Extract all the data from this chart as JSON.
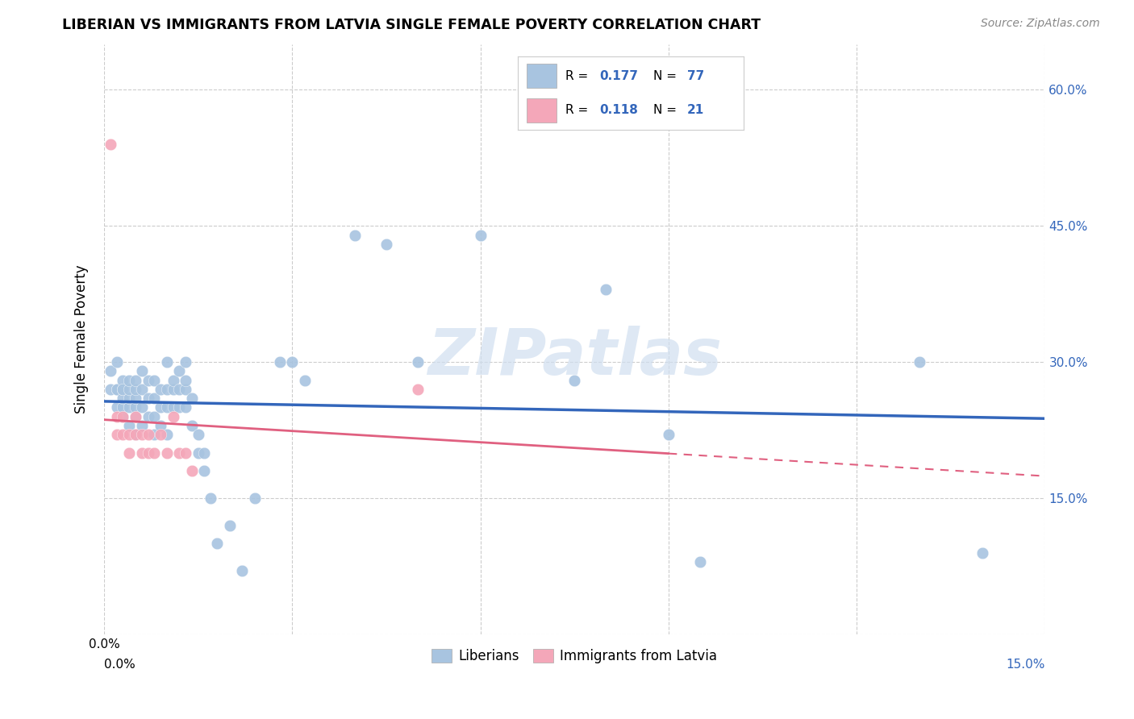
{
  "title": "LIBERIAN VS IMMIGRANTS FROM LATVIA SINGLE FEMALE POVERTY CORRELATION CHART",
  "source": "Source: ZipAtlas.com",
  "ylabel": "Single Female Poverty",
  "xlim": [
    0.0,
    0.15
  ],
  "ylim": [
    0.0,
    0.65
  ],
  "xticks": [
    0.0,
    0.03,
    0.06,
    0.09,
    0.12,
    0.15
  ],
  "yticks": [
    0.0,
    0.15,
    0.3,
    0.45,
    0.6
  ],
  "ytick_labels": [
    "",
    "15.0%",
    "30.0%",
    "45.0%",
    "60.0%"
  ],
  "watermark": "ZIPatlas",
  "blue_color": "#a8c4e0",
  "pink_color": "#f4a7b9",
  "line_blue": "#3366bb",
  "line_pink": "#e06080",
  "grid_color": "#cccccc",
  "blue_x": [
    0.001,
    0.001,
    0.002,
    0.002,
    0.002,
    0.002,
    0.003,
    0.003,
    0.003,
    0.003,
    0.003,
    0.003,
    0.004,
    0.004,
    0.004,
    0.004,
    0.004,
    0.005,
    0.005,
    0.005,
    0.005,
    0.005,
    0.005,
    0.006,
    0.006,
    0.006,
    0.006,
    0.007,
    0.007,
    0.007,
    0.008,
    0.008,
    0.008,
    0.008,
    0.009,
    0.009,
    0.009,
    0.01,
    0.01,
    0.01,
    0.01,
    0.011,
    0.011,
    0.011,
    0.012,
    0.012,
    0.012,
    0.013,
    0.013,
    0.013,
    0.013,
    0.014,
    0.014,
    0.015,
    0.015,
    0.016,
    0.016,
    0.017,
    0.018,
    0.02,
    0.022,
    0.024,
    0.028,
    0.03,
    0.032,
    0.04,
    0.045,
    0.05,
    0.06,
    0.075,
    0.08,
    0.09,
    0.095,
    0.13,
    0.14
  ],
  "blue_y": [
    0.27,
    0.29,
    0.25,
    0.27,
    0.27,
    0.3,
    0.24,
    0.25,
    0.26,
    0.27,
    0.28,
    0.27,
    0.23,
    0.25,
    0.26,
    0.27,
    0.28,
    0.22,
    0.24,
    0.25,
    0.26,
    0.27,
    0.28,
    0.23,
    0.25,
    0.27,
    0.29,
    0.24,
    0.26,
    0.28,
    0.22,
    0.24,
    0.26,
    0.28,
    0.23,
    0.25,
    0.27,
    0.22,
    0.25,
    0.27,
    0.3,
    0.25,
    0.27,
    0.28,
    0.25,
    0.27,
    0.29,
    0.25,
    0.27,
    0.28,
    0.3,
    0.23,
    0.26,
    0.2,
    0.22,
    0.18,
    0.2,
    0.15,
    0.1,
    0.12,
    0.07,
    0.15,
    0.3,
    0.3,
    0.28,
    0.44,
    0.43,
    0.3,
    0.44,
    0.28,
    0.38,
    0.22,
    0.08,
    0.3,
    0.09
  ],
  "pink_x": [
    0.001,
    0.002,
    0.002,
    0.003,
    0.003,
    0.004,
    0.004,
    0.005,
    0.005,
    0.006,
    0.006,
    0.007,
    0.007,
    0.008,
    0.009,
    0.01,
    0.011,
    0.012,
    0.013,
    0.014,
    0.05
  ],
  "pink_y": [
    0.54,
    0.22,
    0.24,
    0.22,
    0.24,
    0.2,
    0.22,
    0.22,
    0.24,
    0.2,
    0.22,
    0.2,
    0.22,
    0.2,
    0.22,
    0.2,
    0.24,
    0.2,
    0.2,
    0.18,
    0.27
  ]
}
